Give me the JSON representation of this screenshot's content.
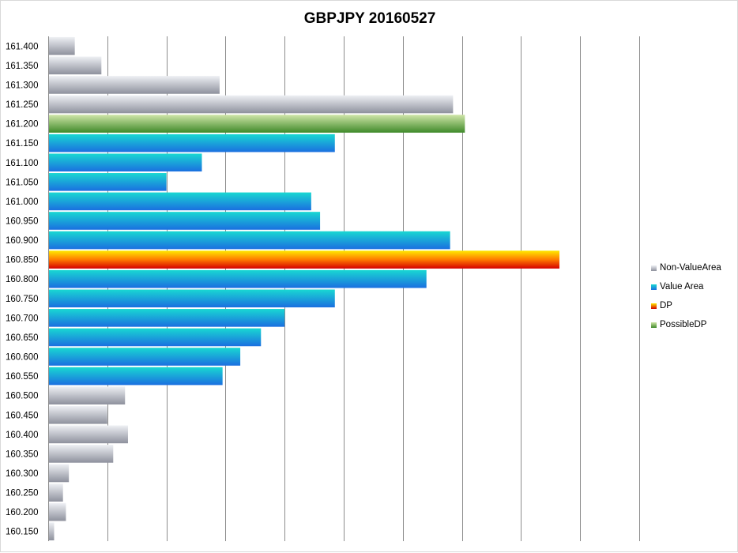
{
  "chart_data": {
    "type": "bar",
    "orientation": "horizontal",
    "title": "GBPJPY 20160527",
    "xlabel": "",
    "ylabel": "",
    "categories": [
      "161.400",
      "161.350",
      "161.300",
      "161.250",
      "161.200",
      "161.150",
      "161.100",
      "161.050",
      "161.000",
      "160.950",
      "160.900",
      "160.850",
      "160.800",
      "160.750",
      "160.700",
      "160.650",
      "160.600",
      "160.550",
      "160.500",
      "160.450",
      "160.400",
      "160.350",
      "160.300",
      "160.250",
      "160.200",
      "160.150"
    ],
    "values": [
      9,
      18,
      58,
      137,
      141,
      97,
      52,
      40,
      89,
      92,
      136,
      173,
      128,
      97,
      80,
      72,
      65,
      59,
      26,
      20,
      27,
      22,
      7,
      5,
      6,
      2
    ],
    "classes": [
      "Non-ValueArea",
      "Non-ValueArea",
      "Non-ValueArea",
      "Non-ValueArea",
      "PossibleDP",
      "Value Area",
      "Value Area",
      "Value Area",
      "Value Area",
      "Value Area",
      "Value Area",
      "DP",
      "Value Area",
      "Value Area",
      "Value Area",
      "Value Area",
      "Value Area",
      "Value Area",
      "Non-ValueArea",
      "Non-ValueArea",
      "Non-ValueArea",
      "Non-ValueArea",
      "Non-ValueArea",
      "Non-ValueArea",
      "Non-ValueArea",
      "Non-ValueArea"
    ],
    "xlim": [
      0,
      200
    ],
    "grid_interval": 20,
    "grid": true,
    "x_tick_labels_shown": false,
    "legend": {
      "position": "right",
      "entries": [
        {
          "name": "Non-ValueArea",
          "color": "#a6a9b4"
        },
        {
          "name": "Value Area",
          "color": "#1ba3d8"
        },
        {
          "name": "DP",
          "color": "#ff3c00"
        },
        {
          "name": "PossibleDP",
          "color": "#6aa23c"
        }
      ]
    },
    "colors": {
      "Non-ValueArea": {
        "light": "#eef0f4",
        "dark": "#8e919d"
      },
      "Value Area": {
        "light": "#19d8d2",
        "dark": "#1a6fe0"
      },
      "DP": {
        "light": "#ffea00",
        "dark": "#d40000"
      },
      "PossibleDP": {
        "light": "#cfe5a8",
        "dark": "#3f8a2a"
      }
    }
  }
}
